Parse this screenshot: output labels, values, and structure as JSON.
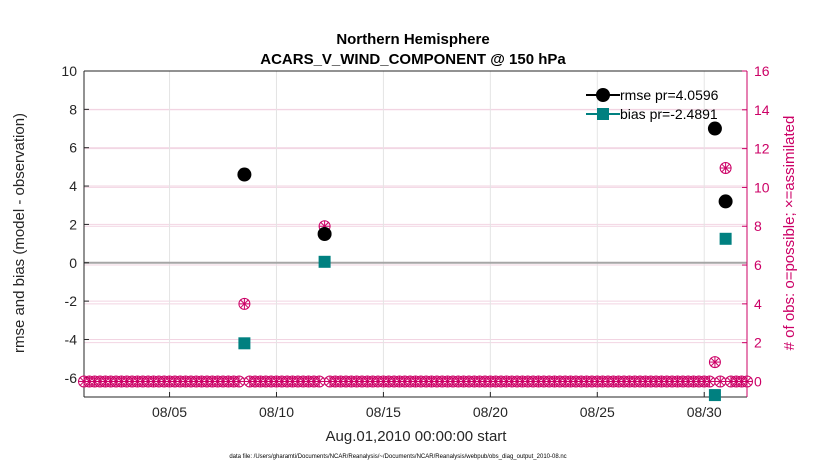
{
  "chart_data": {
    "type": "scatter",
    "title": "Northern Hemisphere",
    "subtitle": "ACARS_V_WIND_COMPONENT @ 150 hPa",
    "xlabel": "Aug.01,2010 00:00:00 start",
    "ylabel": "rmse and bias (model - observation)",
    "ylabel_right": "# of obs: o=possible; ×=assimilated",
    "x_ticks": [
      {
        "x": 5,
        "label": "08/05"
      },
      {
        "x": 10,
        "label": "08/10"
      },
      {
        "x": 15,
        "label": "08/15"
      },
      {
        "x": 20,
        "label": "08/20"
      },
      {
        "x": 25,
        "label": "08/25"
      },
      {
        "x": 30,
        "label": "08/30"
      }
    ],
    "xlim": [
      1,
      32
    ],
    "ylim": [
      -7,
      10
    ],
    "ylim_right": [
      -0.8,
      16
    ],
    "y_ticks": [
      "-6",
      "-4",
      "-2",
      "0",
      "2",
      "4",
      "6",
      "8",
      "10"
    ],
    "y_ticks_right": [
      "0",
      "2",
      "4",
      "6",
      "8",
      "10",
      "12",
      "14",
      "16"
    ],
    "grid": true,
    "legend_position": "top-right",
    "series": [
      {
        "name": "rmse pr=4.0596",
        "color": "#000000",
        "marker": "circle",
        "points": [
          [
            8.5,
            4.6
          ],
          [
            12.25,
            1.5
          ],
          [
            30.5,
            7.0
          ],
          [
            31.0,
            3.2
          ]
        ]
      },
      {
        "name": "bias pr=-2.4891",
        "color": "#008080",
        "marker": "square",
        "points": [
          [
            8.5,
            -4.2
          ],
          [
            12.25,
            0.05
          ],
          [
            30.5,
            -6.9
          ],
          [
            31.0,
            1.25
          ]
        ]
      }
    ],
    "obs_counts": {
      "color": "#cc0066",
      "nonzero": [
        [
          8.5,
          4
        ],
        [
          12.25,
          8
        ],
        [
          30.5,
          1
        ],
        [
          31.0,
          11
        ]
      ],
      "zero_start": 1.0,
      "zero_end": 32.0,
      "zero_step": 0.25
    },
    "footnote": "data file: /Users/gharamti/Documents/NCAR/Reanalysis/~/Documents/NCAR/Reanalysis/webpub/obs_diag_output_2010-08.nc"
  }
}
